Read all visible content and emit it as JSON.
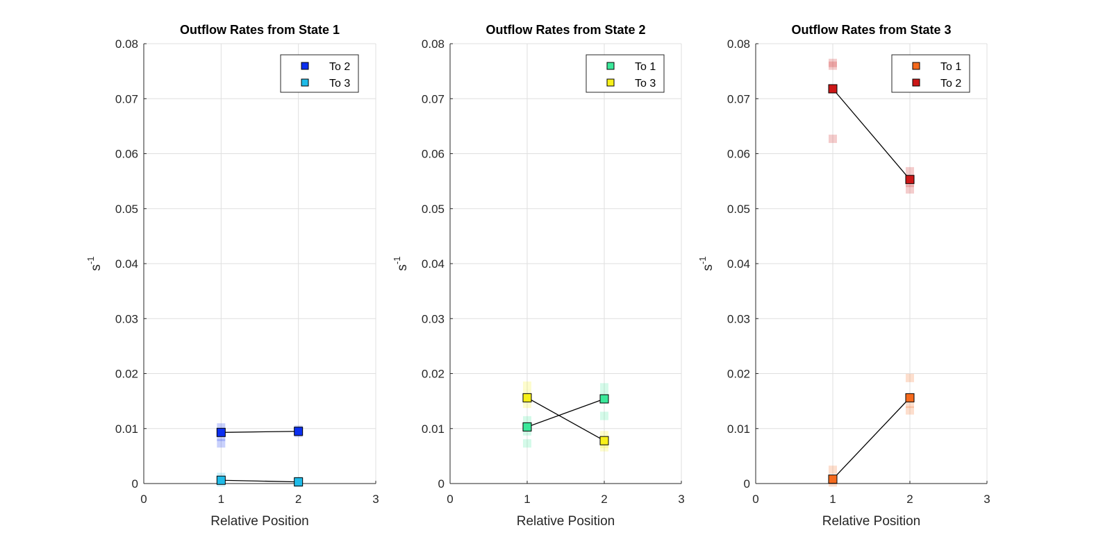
{
  "figure": {
    "background": "#ffffff"
  },
  "chart_data": [
    {
      "type": "scatter",
      "title": "Outflow Rates from State 1",
      "xlabel": "Relative Position",
      "ylabel_base": "s",
      "ylabel_exp": "-1",
      "xlim": [
        0,
        3
      ],
      "ylim": [
        0,
        0.08
      ],
      "xticks": [
        "0",
        "1",
        "2",
        "3"
      ],
      "yticks": [
        "0",
        "0.01",
        "0.02",
        "0.03",
        "0.04",
        "0.05",
        "0.06",
        "0.07",
        "0.08"
      ],
      "grid": true,
      "legend_position": "top-right",
      "series": [
        {
          "name": "To 2",
          "color": "#0b2ff0",
          "x": [
            1,
            2
          ],
          "y": [
            0.0093,
            0.0095
          ],
          "replicates": [
            [
              1,
              0.0102
            ],
            [
              1,
              0.0085
            ],
            [
              1,
              0.0073
            ],
            [
              2,
              0.0098
            ],
            [
              2,
              0.0092
            ]
          ]
        },
        {
          "name": "To 3",
          "color": "#1fbbe8",
          "x": [
            1,
            2
          ],
          "y": [
            0.0006,
            0.0003
          ],
          "replicates": [
            [
              1,
              0.0012
            ],
            [
              1,
              0.0002
            ],
            [
              2,
              0.0005
            ],
            [
              2,
              0.0001
            ]
          ]
        }
      ]
    },
    {
      "type": "scatter",
      "title": "Outflow Rates from State 2",
      "xlabel": "Relative Position",
      "ylabel_base": "s",
      "ylabel_exp": "-1",
      "xlim": [
        0,
        3
      ],
      "ylim": [
        0,
        0.08
      ],
      "xticks": [
        "0",
        "1",
        "2",
        "3"
      ],
      "yticks": [
        "0",
        "0.01",
        "0.02",
        "0.03",
        "0.04",
        "0.05",
        "0.06",
        "0.07",
        "0.08"
      ],
      "grid": true,
      "legend_position": "top-right",
      "series": [
        {
          "name": "To 1",
          "color": "#3be89a",
          "x": [
            1,
            2
          ],
          "y": [
            0.0103,
            0.0154
          ],
          "replicates": [
            [
              1,
              0.0115
            ],
            [
              1,
              0.0073
            ],
            [
              1,
              0.0095
            ],
            [
              2,
              0.0175
            ],
            [
              2,
              0.0123
            ],
            [
              2,
              0.016
            ]
          ]
        },
        {
          "name": "To 3",
          "color": "#f7f01a",
          "x": [
            1,
            2
          ],
          "y": [
            0.0156,
            0.0078
          ],
          "replicates": [
            [
              1,
              0.0178
            ],
            [
              1,
              0.0145
            ],
            [
              1,
              0.0163
            ],
            [
              2,
              0.0088
            ],
            [
              2,
              0.0066
            ],
            [
              2,
              0.0072
            ]
          ]
        }
      ]
    },
    {
      "type": "scatter",
      "title": "Outflow Rates from State 3",
      "xlabel": "Relative Position",
      "ylabel_base": "s",
      "ylabel_exp": "-1",
      "xlim": [
        0,
        3
      ],
      "ylim": [
        0,
        0.08
      ],
      "xticks": [
        "0",
        "1",
        "2",
        "3"
      ],
      "yticks": [
        "0",
        "0.01",
        "0.02",
        "0.03",
        "0.04",
        "0.05",
        "0.06",
        "0.07",
        "0.08"
      ],
      "grid": true,
      "legend_position": "top-right",
      "series": [
        {
          "name": "To 1",
          "color": "#f56a1d",
          "x": [
            1,
            2
          ],
          "y": [
            0.0008,
            0.0156
          ],
          "replicates": [
            [
              1,
              0.0025
            ],
            [
              1,
              0.0002
            ],
            [
              2,
              0.0192
            ],
            [
              2,
              0.0145
            ],
            [
              2,
              0.0133
            ]
          ]
        },
        {
          "name": "To 2",
          "color": "#cc1717",
          "x": [
            1,
            2
          ],
          "y": [
            0.0718,
            0.0553
          ],
          "replicates": [
            [
              1,
              0.0765
            ],
            [
              1,
              0.076
            ],
            [
              1,
              0.0627
            ],
            [
              2,
              0.0568
            ],
            [
              2,
              0.0547
            ],
            [
              2,
              0.0535
            ]
          ]
        }
      ]
    }
  ]
}
